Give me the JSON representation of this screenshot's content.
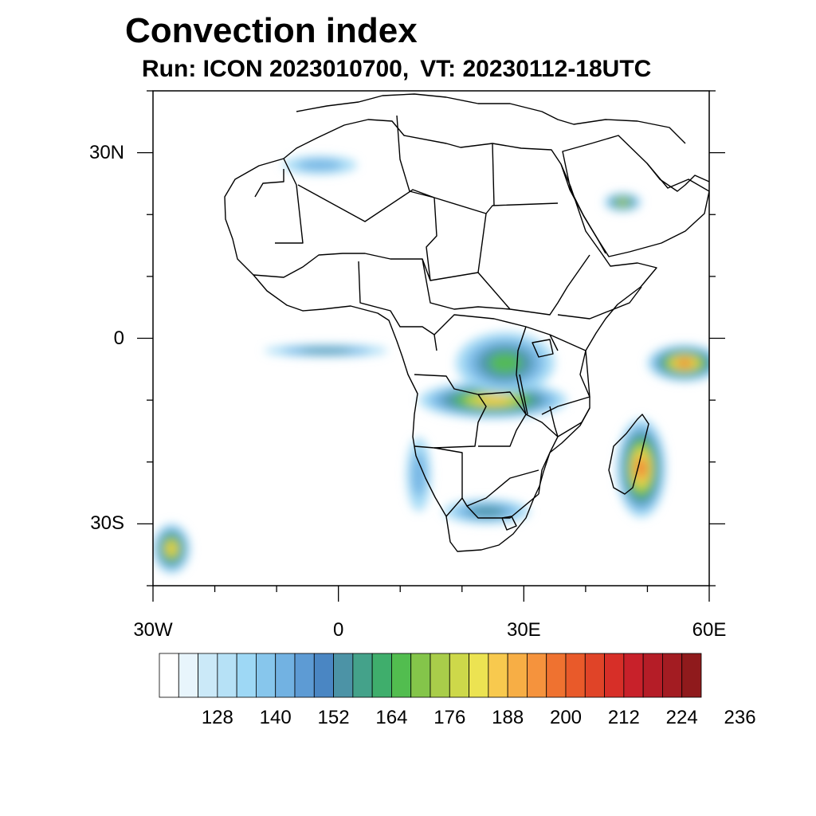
{
  "title": "Convection index",
  "subtitle": {
    "run": "Run: ICON 2023010700,",
    "vt": "VT: 20230112-18UTC"
  },
  "map": {
    "lat_range": [
      -40,
      40
    ],
    "lon_range": [
      -30,
      60
    ],
    "lat_labels": [
      {
        "lat": 30,
        "text": "30N"
      },
      {
        "lat": 0,
        "text": "0"
      },
      {
        "lat": -30,
        "text": "30S"
      }
    ],
    "lon_labels": [
      {
        "lon": -30,
        "text": "30W"
      },
      {
        "lon": 0,
        "text": "0"
      },
      {
        "lon": 30,
        "text": "30E"
      },
      {
        "lon": 60,
        "text": "60E"
      }
    ],
    "field_regions": [
      {
        "name": "southeast-indian-ocean-madagascar",
        "lon": 49,
        "lat": -21,
        "rx": 4,
        "ry": 8,
        "peak": 208
      },
      {
        "name": "western-indian-ocean-equator",
        "lon": 56,
        "lat": -4,
        "rx": 6,
        "ry": 3,
        "peak": 208
      },
      {
        "name": "central-africa-band",
        "lon": 25,
        "lat": -10,
        "rx": 12,
        "ry": 3,
        "peak": 188
      },
      {
        "name": "congo-basin",
        "lon": 27,
        "lat": -4,
        "rx": 8,
        "ry": 5,
        "peak": 164
      },
      {
        "name": "arabian-peninsula",
        "lon": 46,
        "lat": 22,
        "rx": 3,
        "ry": 1.5,
        "peak": 176
      },
      {
        "name": "southwest-atlantic",
        "lon": -27,
        "lat": -34,
        "rx": 3,
        "ry": 4,
        "peak": 188
      },
      {
        "name": "gulf-of-guinea-plume",
        "lon": -2,
        "lat": -2,
        "rx": 10,
        "ry": 1,
        "peak": 152
      },
      {
        "name": "sahara-streak",
        "lon": -3,
        "lat": 28,
        "rx": 6,
        "ry": 1.5,
        "peak": 140
      },
      {
        "name": "southern-africa-plume",
        "lon": 24,
        "lat": -28,
        "rx": 7,
        "ry": 2,
        "peak": 152
      },
      {
        "name": "namibia-coast",
        "lon": 13,
        "lat": -22,
        "rx": 2,
        "ry": 6,
        "peak": 140
      }
    ]
  },
  "colorbar": {
    "colors": [
      "#ffffff",
      "#e8f5fc",
      "#cbe9f8",
      "#b6e1f6",
      "#9ed8f5",
      "#87c6ec",
      "#72b2e2",
      "#5d9bd4",
      "#4a86c3",
      "#4c93a6",
      "#44a28a",
      "#3fae6c",
      "#52bd4f",
      "#84c54a",
      "#a9cd4a",
      "#cdd84a",
      "#ece352",
      "#f8c94e",
      "#f7ae45",
      "#f5933d",
      "#ef7230",
      "#e95a2a",
      "#e04428",
      "#d72f28",
      "#c8212a",
      "#b51d27",
      "#a31c22",
      "#8f1a1c"
    ],
    "tick_labels": [
      "128",
      "140",
      "152",
      "164",
      "176",
      "188",
      "200",
      "212",
      "224",
      "236"
    ]
  }
}
